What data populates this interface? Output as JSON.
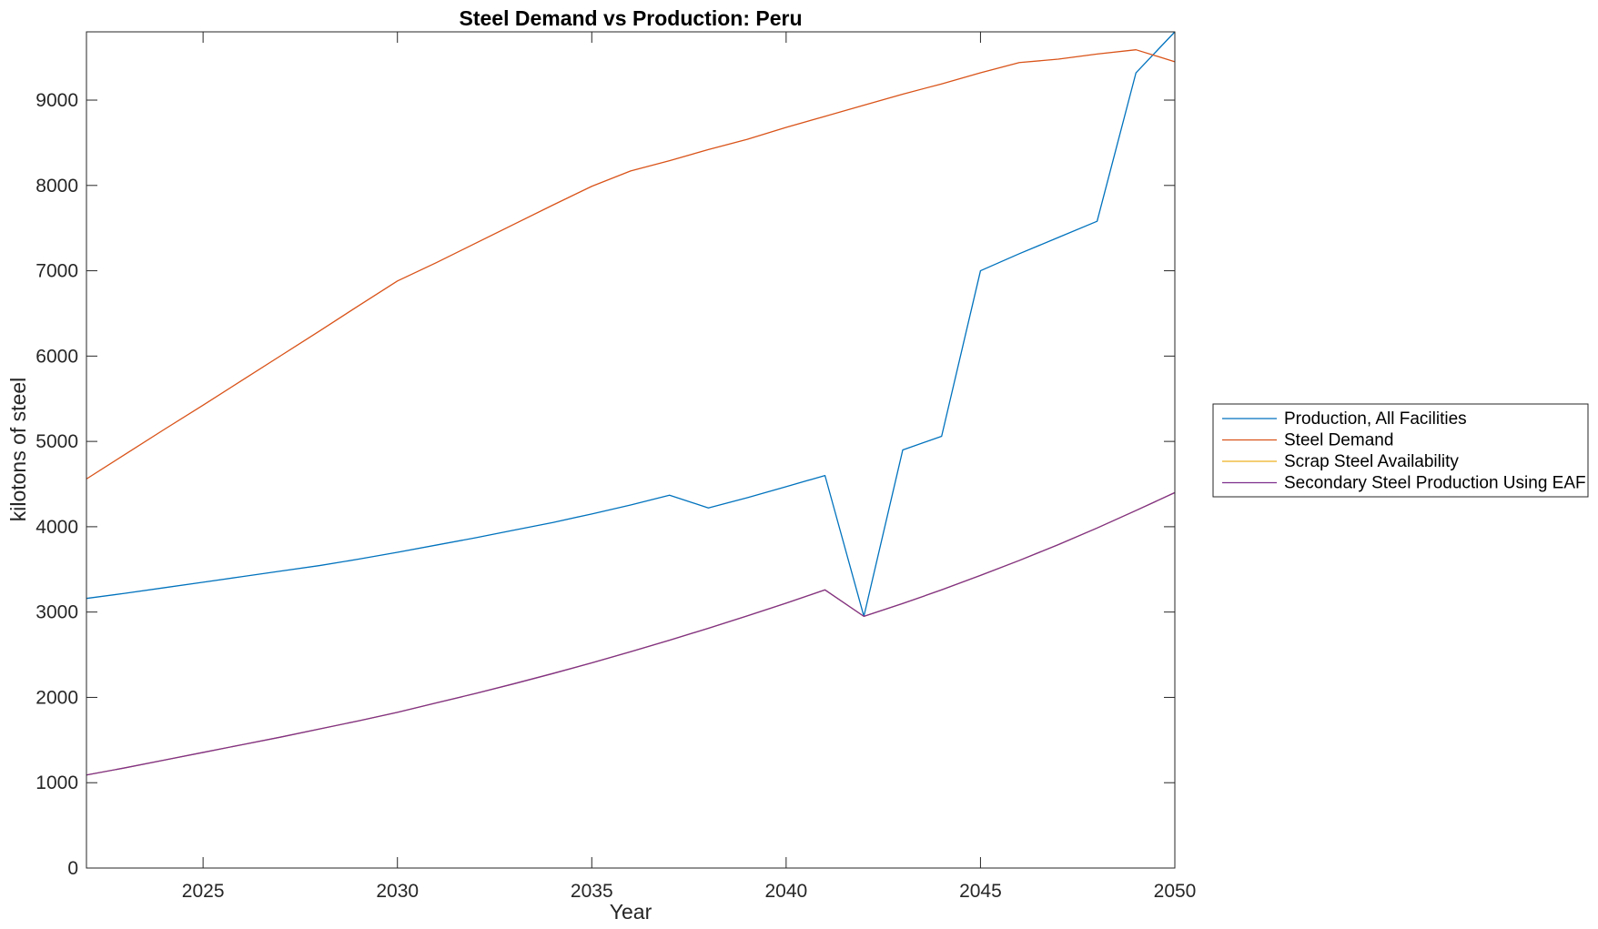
{
  "chart_data": {
    "type": "line",
    "title": "Steel Demand vs Production: Peru",
    "xlabel": "Year",
    "ylabel": "kilotons of steel",
    "xlim": [
      2022,
      2050
    ],
    "ylim": [
      0,
      9800
    ],
    "xticks": [
      2025,
      2030,
      2035,
      2040,
      2045,
      2050
    ],
    "yticks": [
      0,
      1000,
      2000,
      3000,
      4000,
      5000,
      6000,
      7000,
      8000,
      9000
    ],
    "grid": false,
    "legend_position": "outside-right",
    "x": [
      2022,
      2023,
      2024,
      2025,
      2026,
      2027,
      2028,
      2029,
      2030,
      2031,
      2032,
      2033,
      2034,
      2035,
      2036,
      2037,
      2038,
      2039,
      2040,
      2041,
      2042,
      2043,
      2044,
      2045,
      2046,
      2047,
      2048,
      2049,
      2050
    ],
    "series": [
      {
        "name": "Production, All Facilities",
        "color": "#0072BD",
        "values": [
          3160,
          3220,
          3285,
          3350,
          3415,
          3480,
          3545,
          3620,
          3700,
          3785,
          3870,
          3960,
          4050,
          4150,
          4255,
          4370,
          4220,
          4340,
          4470,
          4600,
          2950,
          4900,
          5060,
          7000,
          7200,
          7390,
          7580,
          9320,
          9800
        ]
      },
      {
        "name": "Steel Demand",
        "color": "#D95319",
        "values": [
          4560,
          4850,
          5140,
          5425,
          5715,
          6005,
          6295,
          6590,
          6880,
          7095,
          7320,
          7545,
          7770,
          7990,
          8170,
          8290,
          8420,
          8540,
          8680,
          8810,
          8940,
          9070,
          9190,
          9320,
          9440,
          9480,
          9540,
          9590,
          9450
        ]
      },
      {
        "name": "Scrap Steel Availability",
        "color": "#EDB120",
        "values": [
          1090,
          1175,
          1265,
          1355,
          1445,
          1535,
          1630,
          1725,
          1825,
          1935,
          2045,
          2160,
          2280,
          2405,
          2535,
          2670,
          2810,
          2955,
          3105,
          3260,
          2950,
          3100,
          3260,
          3430,
          3605,
          3790,
          3985,
          4190,
          4400
        ]
      },
      {
        "name": "Secondary Steel Production Using EAF",
        "color": "#7E2F8E",
        "values": [
          1090,
          1175,
          1265,
          1355,
          1445,
          1535,
          1630,
          1725,
          1825,
          1935,
          2045,
          2160,
          2280,
          2405,
          2535,
          2670,
          2810,
          2955,
          3105,
          3260,
          2950,
          3100,
          3260,
          3430,
          3605,
          3790,
          3985,
          4190,
          4400
        ]
      }
    ]
  }
}
